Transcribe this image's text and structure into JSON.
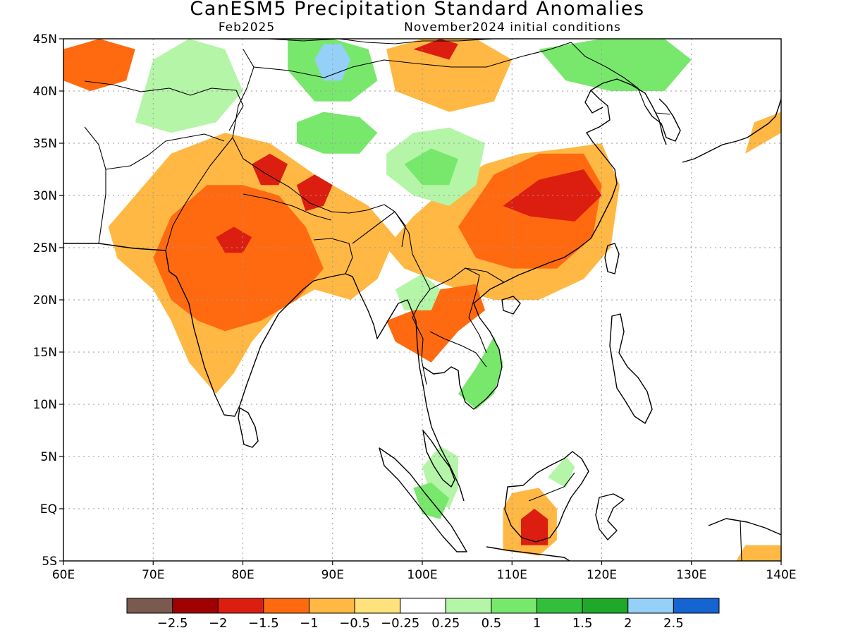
{
  "figure": {
    "title": "CanESM5 Precipitation Standard Anomalies",
    "valid_month": "Feb2025",
    "initial_conditions": "November2024 initial conditions"
  },
  "map": {
    "extent": {
      "lon_min": 60,
      "lon_max": 140,
      "lat_min": -5,
      "lat_max": 45
    },
    "lon_ticks": [
      {
        "value": 60,
        "label": "60E"
      },
      {
        "value": 70,
        "label": "70E"
      },
      {
        "value": 80,
        "label": "80E"
      },
      {
        "value": 90,
        "label": "90E"
      },
      {
        "value": 100,
        "label": "100E"
      },
      {
        "value": 110,
        "label": "110E"
      },
      {
        "value": 120,
        "label": "120E"
      },
      {
        "value": 130,
        "label": "130E"
      },
      {
        "value": 140,
        "label": "140E"
      }
    ],
    "lat_ticks": [
      {
        "value": 45,
        "label": "45N"
      },
      {
        "value": 40,
        "label": "40N"
      },
      {
        "value": 35,
        "label": "35N"
      },
      {
        "value": 30,
        "label": "30N"
      },
      {
        "value": 25,
        "label": "25N"
      },
      {
        "value": 20,
        "label": "20N"
      },
      {
        "value": 15,
        "label": "15N"
      },
      {
        "value": 10,
        "label": "10N"
      },
      {
        "value": 5,
        "label": "5N"
      },
      {
        "value": 0,
        "label": "EQ"
      },
      {
        "value": -5,
        "label": "5S"
      }
    ],
    "grid": "dotted"
  },
  "colorbar": {
    "colors": [
      "#7a5a4e",
      "#a00000",
      "#dc1e10",
      "#ff6a10",
      "#ffb843",
      "#ffe27c",
      "#ffffff",
      "#b4f5a8",
      "#78e86c",
      "#32c03c",
      "#20a828",
      "#94d0f8",
      "#1464d2"
    ],
    "labels": [
      "−2.5",
      "−2",
      "−1.5",
      "−1",
      "−0.5",
      "−0.25",
      "0.25",
      "0.5",
      "1",
      "1.5",
      "2",
      "2.5"
    ]
  },
  "anomalies": [
    {
      "id": "west-india-dry",
      "bin": -0.5,
      "pts": [
        [
          65,
          27
        ],
        [
          68,
          30
        ],
        [
          72,
          34
        ],
        [
          78,
          36
        ],
        [
          83,
          35
        ],
        [
          88,
          32
        ],
        [
          94,
          29
        ],
        [
          97,
          26
        ],
        [
          95,
          22
        ],
        [
          92,
          20
        ],
        [
          88,
          21
        ],
        [
          84,
          19
        ],
        [
          81,
          16
        ],
        [
          79,
          13
        ],
        [
          77,
          11
        ],
        [
          74,
          14
        ],
        [
          72,
          18
        ],
        [
          70,
          21
        ],
        [
          66,
          24
        ]
      ]
    },
    {
      "id": "india-core-dry",
      "bin": -1,
      "pts": [
        [
          70,
          24
        ],
        [
          72,
          28
        ],
        [
          76,
          31
        ],
        [
          80,
          31
        ],
        [
          84,
          30
        ],
        [
          87,
          27
        ],
        [
          89,
          23
        ],
        [
          86,
          20
        ],
        [
          82,
          18
        ],
        [
          78,
          17
        ],
        [
          75,
          18
        ],
        [
          72,
          20
        ]
      ]
    },
    {
      "id": "nw-india-red",
      "bin": -1.5,
      "pts": [
        [
          77,
          26
        ],
        [
          79,
          27
        ],
        [
          81,
          26
        ],
        [
          80,
          24.5
        ],
        [
          78,
          24.5
        ]
      ]
    },
    {
      "id": "nepal-dry",
      "bin": -1.5,
      "pts": [
        [
          81,
          33
        ],
        [
          83,
          34
        ],
        [
          85,
          33
        ],
        [
          84,
          31
        ],
        [
          82,
          31
        ]
      ]
    },
    {
      "id": "tibet-dry",
      "bin": -1.5,
      "pts": [
        [
          86,
          31
        ],
        [
          88,
          32
        ],
        [
          90,
          31
        ],
        [
          89,
          29
        ],
        [
          87,
          28.5
        ]
      ]
    },
    {
      "id": "china-dry-outer",
      "bin": -0.5,
      "pts": [
        [
          96,
          25
        ],
        [
          99,
          28
        ],
        [
          103,
          31
        ],
        [
          107,
          33
        ],
        [
          111,
          34
        ],
        [
          116,
          34.5
        ],
        [
          120,
          35
        ],
        [
          122,
          31
        ],
        [
          121,
          25
        ],
        [
          118,
          22
        ],
        [
          113,
          20
        ],
        [
          108,
          20
        ],
        [
          104,
          21
        ],
        [
          101,
          22
        ],
        [
          98,
          23
        ]
      ]
    },
    {
      "id": "china-dry-mid",
      "bin": -1,
      "pts": [
        [
          104,
          27
        ],
        [
          108,
          32
        ],
        [
          113,
          34
        ],
        [
          118,
          34
        ],
        [
          120,
          31
        ],
        [
          119,
          26
        ],
        [
          115,
          23
        ],
        [
          110,
          23
        ],
        [
          106,
          24
        ]
      ]
    },
    {
      "id": "china-dry-core",
      "bin": -1.5,
      "pts": [
        [
          109,
          29
        ],
        [
          113,
          31.5
        ],
        [
          118,
          32.5
        ],
        [
          120,
          30
        ],
        [
          117,
          27.5
        ],
        [
          112,
          28
        ]
      ]
    },
    {
      "id": "indochina-dry",
      "bin": -1,
      "pts": [
        [
          96,
          18
        ],
        [
          99,
          19
        ],
        [
          102,
          21
        ],
        [
          106,
          21.5
        ],
        [
          107,
          19
        ],
        [
          104,
          17
        ],
        [
          101,
          14
        ],
        [
          99,
          15
        ],
        [
          97,
          16
        ]
      ]
    },
    {
      "id": "borneo-dry-outer",
      "bin": -0.5,
      "pts": [
        [
          109,
          -4
        ],
        [
          109,
          0
        ],
        [
          110,
          1.5
        ],
        [
          113,
          2
        ],
        [
          115,
          0
        ],
        [
          115,
          -3
        ],
        [
          113,
          -4.5
        ]
      ]
    },
    {
      "id": "borneo-dry-core",
      "bin": -1.5,
      "pts": [
        [
          111,
          -3.5
        ],
        [
          111,
          -1
        ],
        [
          112.5,
          0
        ],
        [
          114,
          -1
        ],
        [
          114,
          -3.5
        ]
      ]
    },
    {
      "id": "mongolia-dry",
      "bin": -0.5,
      "pts": [
        [
          96,
          44
        ],
        [
          100,
          45
        ],
        [
          106,
          45
        ],
        [
          110,
          43
        ],
        [
          108,
          39
        ],
        [
          103,
          38
        ],
        [
          97,
          40
        ]
      ]
    },
    {
      "id": "mongolia-core",
      "bin": -1.5,
      "pts": [
        [
          99,
          44
        ],
        [
          102,
          45
        ],
        [
          104,
          44.5
        ],
        [
          103,
          43
        ]
      ]
    },
    {
      "id": "central-asia-dry",
      "bin": -1,
      "pts": [
        [
          60,
          44
        ],
        [
          64,
          45
        ],
        [
          68,
          44
        ],
        [
          67,
          41
        ],
        [
          63,
          40
        ],
        [
          60,
          41
        ]
      ]
    },
    {
      "id": "tibet-wet",
      "bin": 1,
      "pts": [
        [
          86,
          37
        ],
        [
          89,
          38
        ],
        [
          93,
          37.5
        ],
        [
          95,
          36
        ],
        [
          93,
          34
        ],
        [
          89,
          34
        ],
        [
          86,
          35
        ]
      ]
    },
    {
      "id": "mongolia-wet",
      "bin": 1,
      "pts": [
        [
          85,
          45
        ],
        [
          90,
          45
        ],
        [
          94,
          44
        ],
        [
          95,
          41
        ],
        [
          92,
          39
        ],
        [
          88,
          39
        ],
        [
          85,
          42
        ]
      ]
    },
    {
      "id": "mongolia-wet-core",
      "bin": 2.5,
      "pts": [
        [
          88,
          43
        ],
        [
          89,
          44.5
        ],
        [
          91,
          44.5
        ],
        [
          92,
          43
        ],
        [
          91,
          41
        ],
        [
          89,
          41
        ]
      ]
    },
    {
      "id": "kazakh-wet",
      "bin": 0.5,
      "pts": [
        [
          68,
          37
        ],
        [
          70,
          43
        ],
        [
          74,
          45
        ],
        [
          78,
          44
        ],
        [
          80,
          40
        ],
        [
          77,
          37
        ],
        [
          72,
          36
        ]
      ]
    },
    {
      "id": "qinghai-wet",
      "bin": 0.5,
      "pts": [
        [
          96,
          34
        ],
        [
          99,
          36
        ],
        [
          103,
          36.5
        ],
        [
          107,
          35
        ],
        [
          106,
          31
        ],
        [
          103,
          29
        ],
        [
          99,
          30
        ],
        [
          96,
          32
        ]
      ]
    },
    {
      "id": "qinghai-wet-core",
      "bin": 1,
      "pts": [
        [
          98,
          33
        ],
        [
          101,
          34.5
        ],
        [
          104,
          33.5
        ],
        [
          103,
          31
        ],
        [
          100,
          31
        ]
      ]
    },
    {
      "id": "ne-china-wet",
      "bin": 1,
      "pts": [
        [
          113,
          44
        ],
        [
          120,
          45
        ],
        [
          127,
          45
        ],
        [
          130,
          43
        ],
        [
          127,
          40
        ],
        [
          121,
          40
        ],
        [
          116,
          41
        ]
      ]
    },
    {
      "id": "vietnam-wet",
      "bin": 1,
      "pts": [
        [
          104,
          11
        ],
        [
          106,
          13.5
        ],
        [
          108,
          16.5
        ],
        [
          109,
          14
        ],
        [
          108,
          11
        ],
        [
          106,
          9.5
        ]
      ]
    },
    {
      "id": "mekong-wet",
      "bin": 0.5,
      "pts": [
        [
          97,
          21
        ],
        [
          100,
          22.5
        ],
        [
          102,
          21
        ],
        [
          101,
          19
        ],
        [
          98,
          19
        ]
      ]
    },
    {
      "id": "malaya-wet",
      "bin": 0.5,
      "pts": [
        [
          100,
          4
        ],
        [
          102,
          6
        ],
        [
          104,
          5
        ],
        [
          104,
          2
        ],
        [
          103,
          0
        ],
        [
          101,
          1
        ]
      ]
    },
    {
      "id": "sumatra-wet",
      "bin": 1,
      "pts": [
        [
          99,
          2
        ],
        [
          101,
          2.5
        ],
        [
          103,
          1
        ],
        [
          102,
          -1
        ],
        [
          100,
          -0.5
        ]
      ]
    },
    {
      "id": "sabah-wet",
      "bin": 0.5,
      "pts": [
        [
          114,
          3
        ],
        [
          116,
          5
        ],
        [
          117,
          4
        ],
        [
          116,
          2
        ]
      ]
    },
    {
      "id": "png-dry",
      "bin": -0.5,
      "pts": [
        [
          135,
          -5
        ],
        [
          140,
          -5
        ],
        [
          140,
          -3.5
        ],
        [
          136,
          -3.5
        ]
      ]
    },
    {
      "id": "japan-dry",
      "bin": -0.5,
      "pts": [
        [
          136,
          34
        ],
        [
          140,
          36
        ],
        [
          140,
          38
        ],
        [
          137,
          37
        ]
      ]
    }
  ]
}
